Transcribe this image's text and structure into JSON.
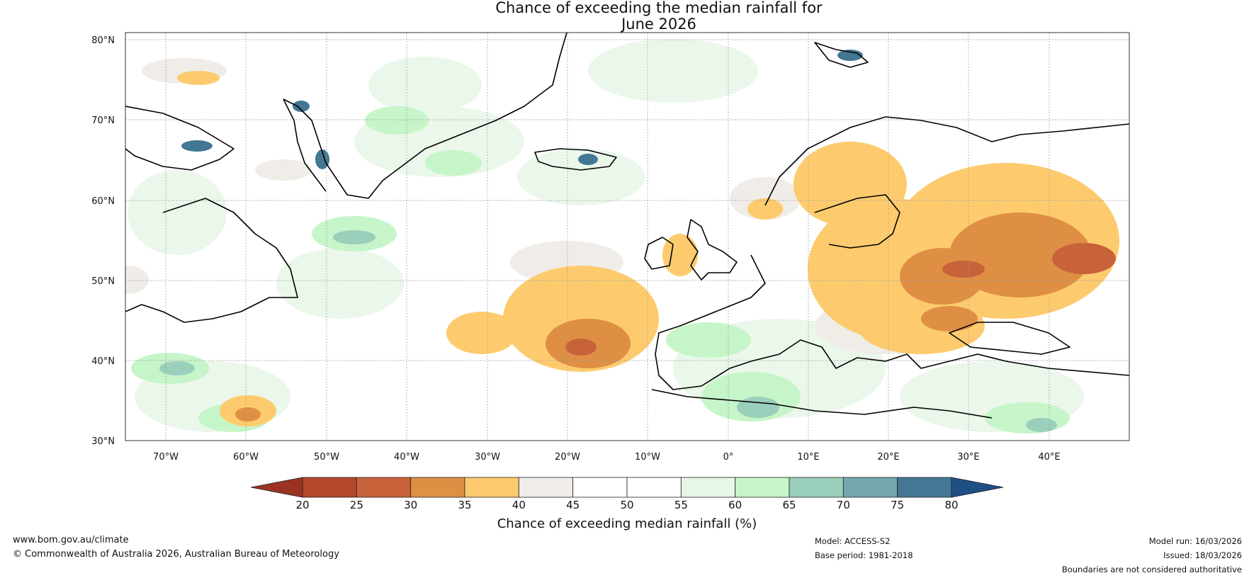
{
  "title": {
    "line1": "Chance of exceeding the median rainfall for",
    "line2": "June 2026"
  },
  "map": {
    "lat_labels": [
      "80°N",
      "70°N",
      "60°N",
      "50°N",
      "40°N",
      "30°N"
    ],
    "lon_labels": [
      "70°W",
      "60°W",
      "50°W",
      "40°W",
      "30°W",
      "20°W",
      "10°W",
      "0°",
      "10°E",
      "20°E",
      "30°E",
      "40°E"
    ],
    "lat_values": [
      80,
      70,
      60,
      50,
      40,
      30
    ],
    "lon_values": [
      -70,
      -60,
      -50,
      -40,
      -30,
      -20,
      -10,
      0,
      10,
      20,
      30,
      40
    ],
    "extent": {
      "lon_min": -75,
      "lon_max": 50,
      "lat_min": 30,
      "lat_max": 81
    }
  },
  "colorbar": {
    "ticks": [
      "20",
      "25",
      "30",
      "35",
      "40",
      "45",
      "50",
      "55",
      "60",
      "65",
      "70",
      "75",
      "80"
    ],
    "colors": [
      "#b3472c",
      "#c8623a",
      "#df8f44",
      "#fdcb6e",
      "#f0ece8",
      "#ffffff",
      "#ffffff",
      "#e8f6e8",
      "#c6f5c9",
      "#9acfbc",
      "#72a7ae",
      "#437794"
    ],
    "under_color": "#9c3322",
    "over_color": "#1e4f85",
    "label": "Chance of exceeding median rainfall (%)"
  },
  "footer": {
    "website": "www.bom.gov.au/climate",
    "copyright": "© Commonwealth of Australia 2026, Australian Bureau of Meteorology",
    "model": "Model: ACCESS-S2",
    "base_period": "Base period: 1981-2018",
    "model_run": "Model run: 16/03/2026",
    "issued": "Issued: 18/03/2026",
    "disclaimer": "Boundaries are not considered authoritative"
  }
}
